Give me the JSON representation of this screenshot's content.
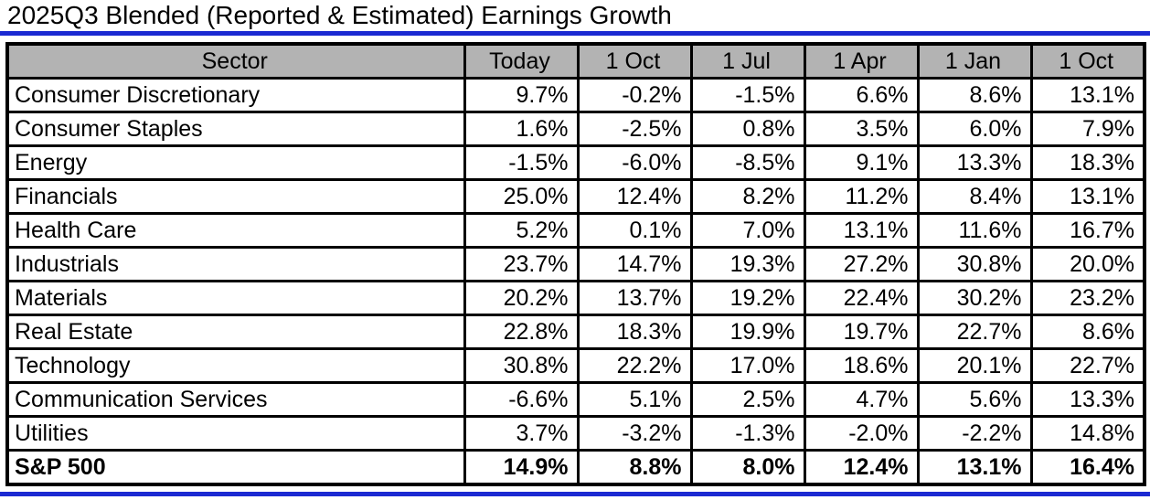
{
  "title": "2025Q3 Blended (Reported & Estimated) Earnings Growth",
  "colors": {
    "accent_blue": "#1b2ad2",
    "header_gray": "#b3b3b3",
    "border_black": "#000000",
    "background": "#ffffff"
  },
  "table": {
    "columns": [
      {
        "label": "Sector"
      },
      {
        "label": "Today"
      },
      {
        "label": "1 Oct"
      },
      {
        "label": "1 Jul"
      },
      {
        "label": "1 Apr"
      },
      {
        "label": "1 Jan"
      },
      {
        "label": "1 Oct"
      }
    ],
    "rows": [
      {
        "sector": "Consumer Discretionary",
        "bold": false,
        "values": [
          "9.7%",
          "-0.2%",
          "-1.5%",
          "6.6%",
          "8.6%",
          "13.1%"
        ]
      },
      {
        "sector": "Consumer Staples",
        "bold": false,
        "values": [
          "1.6%",
          "-2.5%",
          "0.8%",
          "3.5%",
          "6.0%",
          "7.9%"
        ]
      },
      {
        "sector": "Energy",
        "bold": false,
        "values": [
          "-1.5%",
          "-6.0%",
          "-8.5%",
          "9.1%",
          "13.3%",
          "18.3%"
        ]
      },
      {
        "sector": "Financials",
        "bold": false,
        "values": [
          "25.0%",
          "12.4%",
          "8.2%",
          "11.2%",
          "8.4%",
          "13.1%"
        ]
      },
      {
        "sector": "Health Care",
        "bold": false,
        "values": [
          "5.2%",
          "0.1%",
          "7.0%",
          "13.1%",
          "11.6%",
          "16.7%"
        ]
      },
      {
        "sector": "Industrials",
        "bold": false,
        "values": [
          "23.7%",
          "14.7%",
          "19.3%",
          "27.2%",
          "30.8%",
          "20.0%"
        ]
      },
      {
        "sector": "Materials",
        "bold": false,
        "values": [
          "20.2%",
          "13.7%",
          "19.2%",
          "22.4%",
          "30.2%",
          "23.2%"
        ]
      },
      {
        "sector": "Real Estate",
        "bold": false,
        "values": [
          "22.8%",
          "18.3%",
          "19.9%",
          "19.7%",
          "22.7%",
          "8.6%"
        ]
      },
      {
        "sector": "Technology",
        "bold": false,
        "values": [
          "30.8%",
          "22.2%",
          "17.0%",
          "18.6%",
          "20.1%",
          "22.7%"
        ]
      },
      {
        "sector": "Communication Services",
        "bold": false,
        "values": [
          "-6.6%",
          "5.1%",
          "2.5%",
          "4.7%",
          "5.6%",
          "13.3%"
        ]
      },
      {
        "sector": "Utilities",
        "bold": false,
        "values": [
          "3.7%",
          "-3.2%",
          "-1.3%",
          "-2.0%",
          "-2.2%",
          "14.8%"
        ]
      },
      {
        "sector": "S&P 500",
        "bold": true,
        "values": [
          "14.9%",
          "8.8%",
          "8.0%",
          "12.4%",
          "13.1%",
          "16.4%"
        ]
      }
    ]
  },
  "chart_data": {
    "type": "table",
    "title": "2025Q3 Blended (Reported & Estimated) Earnings Growth",
    "unit": "%",
    "categories": [
      "Consumer Discretionary",
      "Consumer Staples",
      "Energy",
      "Financials",
      "Health Care",
      "Industrials",
      "Materials",
      "Real Estate",
      "Technology",
      "Communication Services",
      "Utilities",
      "S&P 500"
    ],
    "series": [
      {
        "name": "Today",
        "values": [
          9.7,
          1.6,
          -1.5,
          25.0,
          5.2,
          23.7,
          20.2,
          22.8,
          30.8,
          -6.6,
          3.7,
          14.9
        ]
      },
      {
        "name": "1 Oct",
        "values": [
          -0.2,
          -2.5,
          -6.0,
          12.4,
          0.1,
          14.7,
          13.7,
          18.3,
          22.2,
          5.1,
          -3.2,
          8.8
        ]
      },
      {
        "name": "1 Jul",
        "values": [
          -1.5,
          0.8,
          -8.5,
          8.2,
          7.0,
          19.3,
          19.2,
          19.9,
          17.0,
          2.5,
          -1.3,
          8.0
        ]
      },
      {
        "name": "1 Apr",
        "values": [
          6.6,
          3.5,
          9.1,
          11.2,
          13.1,
          27.2,
          22.4,
          19.7,
          18.6,
          4.7,
          -2.0,
          12.4
        ]
      },
      {
        "name": "1 Jan",
        "values": [
          8.6,
          6.0,
          13.3,
          8.4,
          11.6,
          30.8,
          30.2,
          22.7,
          20.1,
          5.6,
          -2.2,
          13.1
        ]
      },
      {
        "name": "1 Oct",
        "values": [
          13.1,
          7.9,
          18.3,
          13.1,
          16.7,
          20.0,
          23.2,
          8.6,
          22.7,
          13.3,
          14.8,
          16.4
        ]
      }
    ]
  }
}
